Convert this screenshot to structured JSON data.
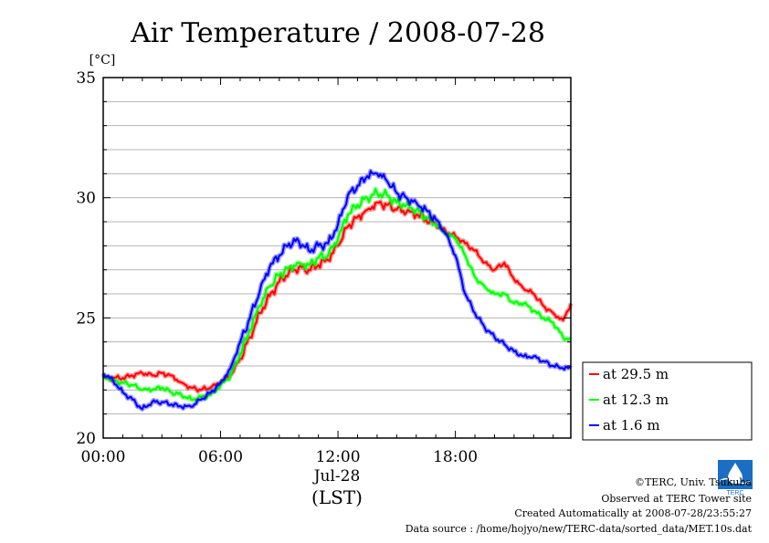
{
  "title": "Air Temperature / 2008-07-28",
  "unit_label": "[°C]",
  "x_date_label": "Jul-28",
  "x_axis_label": "(LST)",
  "credits": [
    "©TERC, Univ. Tsukuba",
    "Observed at TERC Tower site",
    "Created Automatically at 2008-07-28/23:55:27",
    "Data source : /home/hojyo/new/TERC-data/sorted_data/MET.10s.dat"
  ],
  "logo_text": "TERC",
  "chart_data": {
    "type": "line",
    "title": "Air Temperature / 2008-07-28",
    "xlabel": "(LST)",
    "ylabel": "[°C]",
    "xlim": [
      0,
      23.9
    ],
    "ylim": [
      20,
      35
    ],
    "x_tick_labels": [
      "00:00",
      "06:00",
      "12:00",
      "18:00"
    ],
    "x_tick_hours": [
      0,
      6,
      12,
      18
    ],
    "y_tick_labels": [
      "20",
      "25",
      "30",
      "35"
    ],
    "y_tick_values": [
      20,
      25,
      30,
      35
    ],
    "grid": "horizontal every 1 °C",
    "legend_position": "right",
    "x": [
      0,
      0.5,
      1,
      1.5,
      2,
      2.5,
      3,
      3.5,
      4,
      4.5,
      5,
      5.5,
      6,
      6.5,
      7,
      7.5,
      8,
      8.5,
      9,
      9.5,
      10,
      10.5,
      11,
      11.5,
      12,
      12.5,
      13,
      13.5,
      14,
      14.5,
      15,
      15.5,
      16,
      16.5,
      17,
      17.5,
      18,
      18.5,
      19,
      19.5,
      20,
      20.5,
      21,
      21.5,
      22,
      22.5,
      23,
      23.5,
      23.9
    ],
    "series": [
      {
        "name": "at 29.5 m",
        "color": "#ff0000",
        "values": [
          22.5,
          22.5,
          22.5,
          22.6,
          22.7,
          22.6,
          22.7,
          22.6,
          22.3,
          22.1,
          22.0,
          22.1,
          22.3,
          22.6,
          23.3,
          24.2,
          25.2,
          25.9,
          26.5,
          26.9,
          27.1,
          27.0,
          27.2,
          27.4,
          28.0,
          28.8,
          29.2,
          29.5,
          29.8,
          29.7,
          29.5,
          29.4,
          29.3,
          29.1,
          28.9,
          28.6,
          28.4,
          28.1,
          27.8,
          27.3,
          27.0,
          27.3,
          26.6,
          26.2,
          26.0,
          25.5,
          25.2,
          24.9,
          25.6
        ]
      },
      {
        "name": "at 12.3 m",
        "color": "#00ff00",
        "values": [
          22.6,
          22.4,
          22.3,
          22.2,
          22.0,
          22.0,
          22.1,
          21.9,
          21.8,
          21.6,
          21.7,
          21.8,
          22.2,
          22.6,
          23.5,
          24.5,
          25.5,
          26.3,
          26.8,
          27.1,
          27.3,
          27.2,
          27.5,
          27.6,
          28.3,
          29.3,
          29.7,
          30.0,
          30.2,
          30.1,
          29.8,
          29.7,
          29.5,
          29.2,
          28.9,
          28.5,
          28.3,
          27.6,
          26.7,
          26.3,
          26.0,
          26.0,
          25.6,
          25.6,
          25.3,
          25.0,
          24.8,
          24.2,
          24.1
        ]
      },
      {
        "name": "at 1.6 m",
        "color": "#0000ff",
        "values": [
          22.7,
          22.4,
          21.9,
          21.6,
          21.2,
          21.5,
          21.5,
          21.4,
          21.3,
          21.3,
          21.6,
          21.9,
          22.3,
          22.9,
          24.0,
          25.0,
          26.1,
          27.1,
          27.6,
          28.1,
          28.2,
          27.8,
          28.0,
          28.1,
          28.9,
          30.1,
          30.5,
          30.9,
          31.0,
          30.7,
          30.2,
          30.0,
          29.8,
          29.5,
          29.1,
          28.5,
          27.6,
          26.0,
          25.2,
          24.6,
          24.2,
          23.9,
          23.6,
          23.4,
          23.4,
          23.2,
          23.0,
          22.9,
          22.9
        ]
      }
    ]
  }
}
